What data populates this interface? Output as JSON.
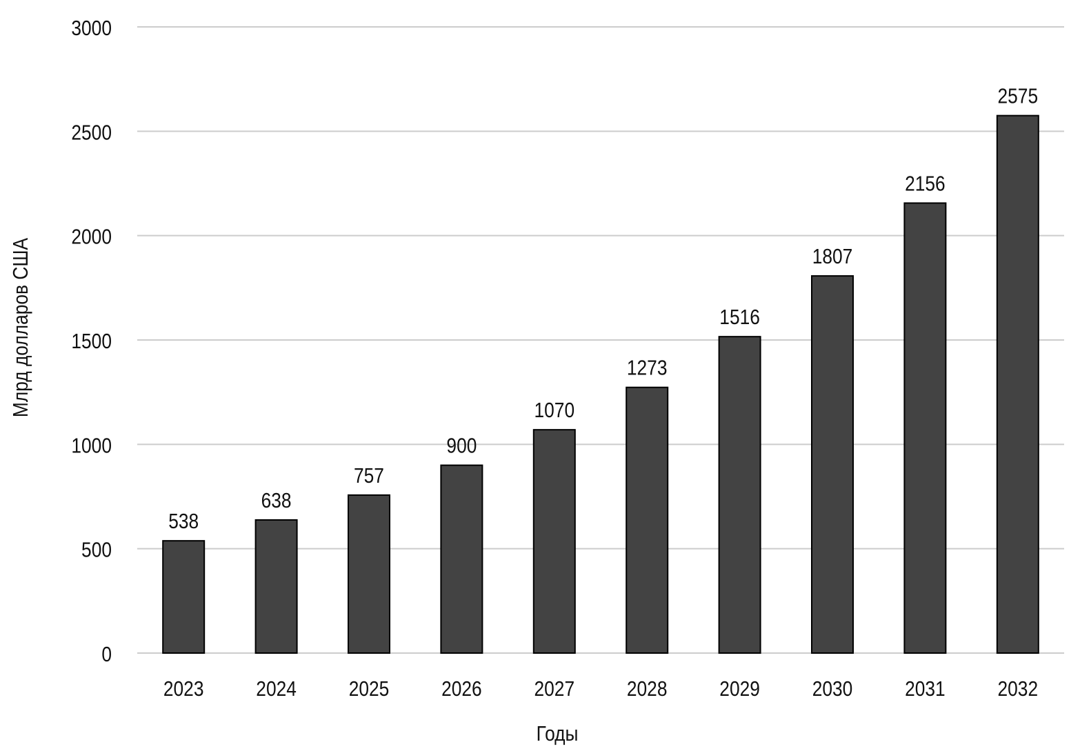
{
  "chart_data": {
    "type": "bar",
    "title": "",
    "xlabel": "Годы",
    "ylabel": "Млрд долларов США",
    "categories": [
      "2023",
      "2024",
      "2025",
      "2026",
      "2027",
      "2028",
      "2029",
      "2030",
      "2031",
      "2032"
    ],
    "values": [
      538,
      638,
      757,
      900,
      1070,
      1273,
      1516,
      1807,
      2156,
      2575
    ],
    "ylim": [
      0,
      3000
    ],
    "yticks": [
      0,
      500,
      1000,
      1500,
      2000,
      2500,
      3000
    ],
    "grid": true,
    "data_labels": true,
    "colors": {
      "bar_fill": "#434343",
      "bar_stroke": "#000000",
      "grid": "#cccccc"
    }
  }
}
